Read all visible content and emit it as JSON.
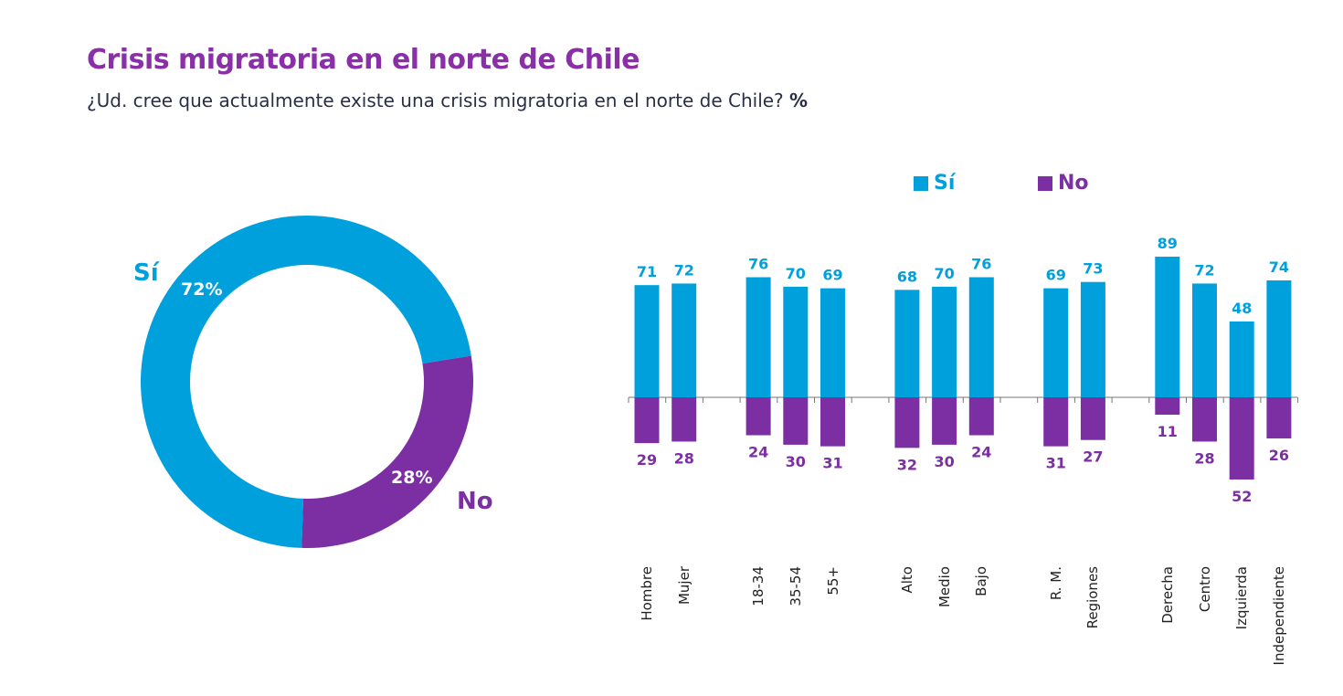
{
  "header": {
    "title": "Crisis migratoria en el norte de Chile",
    "subtitle": "¿Ud. cree que actualmente existe una crisis migratoria en el norte de Chile?",
    "unit": "%"
  },
  "colors": {
    "si": "#00a0dc",
    "no": "#7b2fa3",
    "title": "#8a2fa8"
  },
  "chart_data": [
    {
      "type": "pie",
      "variant": "donut",
      "labels": [
        "Sí",
        "No"
      ],
      "values": [
        72,
        28
      ],
      "value_labels": [
        "72%",
        "28%"
      ]
    },
    {
      "type": "bar",
      "diverging": true,
      "legend": [
        "Sí",
        "No"
      ],
      "legend_position": "top",
      "categories": [
        "Hombre",
        "Mujer",
        "18-34",
        "35-54",
        "55+",
        "Alto",
        "Medio",
        "Bajo",
        "R. M.",
        "Regiones",
        "Derecha",
        "Centro",
        "Izquierda",
        "Independiente"
      ],
      "groups": [
        [
          "Hombre",
          "Mujer"
        ],
        [
          "18-34",
          "35-54",
          "55+"
        ],
        [
          "Alto",
          "Medio",
          "Bajo"
        ],
        [
          "R. M.",
          "Regiones"
        ],
        [
          "Derecha",
          "Centro",
          "Izquierda",
          "Independiente"
        ]
      ],
      "series": [
        {
          "name": "Sí",
          "values": [
            71,
            72,
            76,
            70,
            69,
            68,
            70,
            76,
            69,
            73,
            89,
            72,
            48,
            74
          ]
        },
        {
          "name": "No",
          "values": [
            29,
            28,
            24,
            30,
            31,
            32,
            30,
            24,
            31,
            27,
            11,
            28,
            52,
            26
          ]
        }
      ]
    }
  ]
}
